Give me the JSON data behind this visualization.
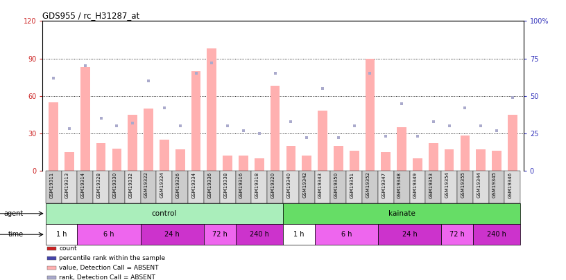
{
  "title": "GDS955 / rc_H31287_at",
  "samples": [
    "GSM19311",
    "GSM19313",
    "GSM19314",
    "GSM19328",
    "GSM19330",
    "GSM19332",
    "GSM19322",
    "GSM19324",
    "GSM19326",
    "GSM19334",
    "GSM19336",
    "GSM19338",
    "GSM19316",
    "GSM19318",
    "GSM19320",
    "GSM19340",
    "GSM19342",
    "GSM19343",
    "GSM19350",
    "GSM19351",
    "GSM19352",
    "GSM19347",
    "GSM19348",
    "GSM19349",
    "GSM19353",
    "GSM19354",
    "GSM19355",
    "GSM19344",
    "GSM19345",
    "GSM19346"
  ],
  "bar_values": [
    55,
    15,
    83,
    22,
    18,
    45,
    50,
    25,
    17,
    80,
    98,
    12,
    12,
    10,
    68,
    20,
    12,
    48,
    20,
    16,
    90,
    15,
    35,
    10,
    22,
    17,
    28,
    17,
    16,
    45
  ],
  "rank_values": [
    62,
    28,
    70,
    35,
    30,
    32,
    60,
    42,
    30,
    65,
    72,
    30,
    27,
    25,
    65,
    33,
    22,
    55,
    22,
    30,
    65,
    23,
    45,
    23,
    33,
    30,
    42,
    30,
    27,
    49
  ],
  "bar_color": "#FFB0B0",
  "rank_color": "#AAAACC",
  "ylim_left": [
    0,
    120
  ],
  "ylim_right": [
    0,
    100
  ],
  "yticks_left": [
    0,
    30,
    60,
    90,
    120
  ],
  "yticks_right": [
    0,
    25,
    50,
    75,
    100
  ],
  "ytick_labels_left": [
    "0",
    "30",
    "60",
    "90",
    "120"
  ],
  "ytick_labels_right": [
    "0",
    "25",
    "50",
    "75",
    "100%"
  ],
  "gridlines": [
    30,
    60,
    90
  ],
  "agent_groups": [
    {
      "label": "control",
      "start": 0,
      "end": 14,
      "color": "#AAEEBB"
    },
    {
      "label": "kainate",
      "start": 15,
      "end": 29,
      "color": "#66DD66"
    }
  ],
  "time_groups": [
    {
      "label": "1 h",
      "start": 0,
      "end": 1,
      "color": "#FFFFFF"
    },
    {
      "label": "6 h",
      "start": 2,
      "end": 5,
      "color": "#EE66EE"
    },
    {
      "label": "24 h",
      "start": 6,
      "end": 9,
      "color": "#CC33CC"
    },
    {
      "label": "72 h",
      "start": 10,
      "end": 11,
      "color": "#EE66EE"
    },
    {
      "label": "240 h",
      "start": 12,
      "end": 14,
      "color": "#CC33CC"
    },
    {
      "label": "1 h",
      "start": 15,
      "end": 16,
      "color": "#FFFFFF"
    },
    {
      "label": "6 h",
      "start": 17,
      "end": 20,
      "color": "#EE66EE"
    },
    {
      "label": "24 h",
      "start": 21,
      "end": 24,
      "color": "#CC33CC"
    },
    {
      "label": "72 h",
      "start": 25,
      "end": 26,
      "color": "#EE66EE"
    },
    {
      "label": "240 h",
      "start": 27,
      "end": 29,
      "color": "#CC33CC"
    }
  ],
  "legend_items": [
    {
      "label": "count",
      "color": "#CC2222"
    },
    {
      "label": "percentile rank within the sample",
      "color": "#4444AA"
    },
    {
      "label": "value, Detection Call = ABSENT",
      "color": "#FFB0B0"
    },
    {
      "label": "rank, Detection Call = ABSENT",
      "color": "#AAAACC"
    }
  ],
  "left_tick_color": "#CC2222",
  "right_tick_color": "#3333BB",
  "xtick_cell_colors": [
    "#CCCCCC",
    "#DDDDDD"
  ],
  "bg_color": "#FFFFFF"
}
